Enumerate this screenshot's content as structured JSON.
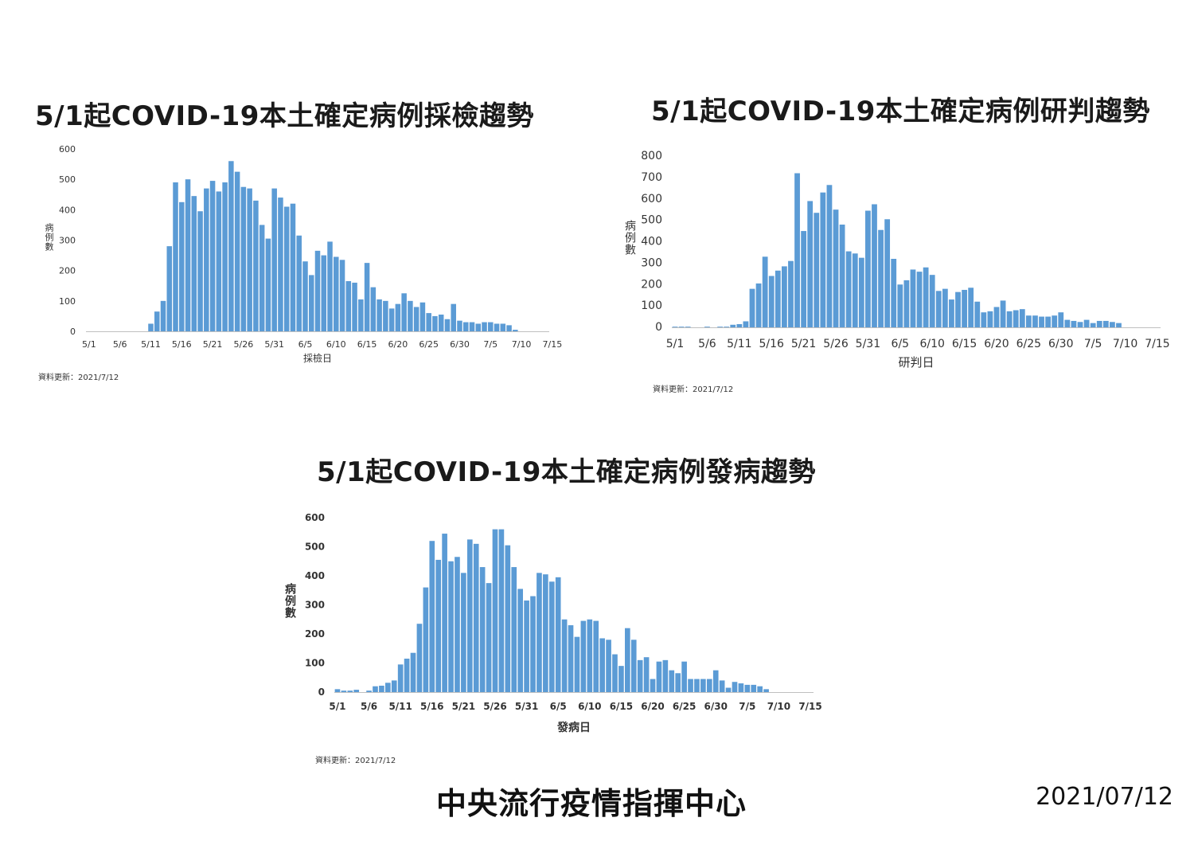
{
  "charts": [
    {
      "title": "5/1起COVID-19本土確定病例採檢趨勢",
      "xlabel": "採檢日",
      "ylabel": "病例數",
      "update": "資料更新：2021/7/12"
    },
    {
      "title": "5/1起COVID-19本土確定病例研判趨勢",
      "xlabel": "研判日",
      "ylabel": "病例數",
      "update": "資料更新：2021/7/12"
    },
    {
      "title": "5/1起COVID-19本土確定病例發病趨勢",
      "xlabel": "發病日",
      "ylabel": "病例數",
      "update": "資料更新：2021/7/12"
    }
  ],
  "footer": {
    "org": "中央流行疫情指揮中心",
    "date": "2021/07/12"
  },
  "bar_color": "#5b9bd5",
  "chart_data": [
    {
      "type": "bar",
      "title": "5/1起COVID-19本土確定病例採檢趨勢",
      "xlabel": "採檢日",
      "ylabel": "病例數",
      "xtick_labels": [
        "5/1",
        "5/6",
        "5/11",
        "5/16",
        "5/21",
        "5/26",
        "5/31",
        "6/5",
        "6/10",
        "6/15",
        "6/20",
        "6/25",
        "6/30",
        "7/5",
        "7/10",
        "7/15"
      ],
      "ylim": [
        0,
        600
      ],
      "yticks": [
        0,
        100,
        200,
        300,
        400,
        500,
        600
      ],
      "values": [
        0,
        0,
        0,
        0,
        0,
        0,
        0,
        0,
        0,
        0,
        25,
        65,
        100,
        280,
        490,
        425,
        500,
        445,
        395,
        470,
        495,
        460,
        490,
        560,
        525,
        475,
        470,
        430,
        350,
        305,
        470,
        440,
        410,
        420,
        315,
        230,
        185,
        265,
        250,
        295,
        245,
        235,
        165,
        160,
        105,
        225,
        145,
        105,
        100,
        75,
        90,
        125,
        100,
        80,
        95,
        60,
        50,
        55,
        40,
        90,
        35,
        30,
        30,
        25,
        30,
        30,
        25,
        25,
        20,
        5
      ],
      "grid": false,
      "legend": "none"
    },
    {
      "type": "bar",
      "title": "5/1起COVID-19本土確定病例研判趨勢",
      "xlabel": "研判日",
      "ylabel": "病例數",
      "xtick_labels": [
        "5/1",
        "5/6",
        "5/11",
        "5/16",
        "5/21",
        "5/26",
        "5/31",
        "6/5",
        "6/10",
        "6/15",
        "6/20",
        "6/25",
        "6/30",
        "7/5",
        "7/10",
        "7/15"
      ],
      "ylim": [
        0,
        800
      ],
      "yticks": [
        0,
        100,
        200,
        300,
        400,
        500,
        600,
        700,
        800
      ],
      "values": [
        3,
        3,
        3,
        0,
        0,
        3,
        0,
        3,
        3,
        12,
        15,
        28,
        180,
        205,
        330,
        240,
        265,
        285,
        310,
        720,
        450,
        590,
        535,
        630,
        665,
        550,
        480,
        355,
        345,
        325,
        545,
        575,
        455,
        505,
        320,
        200,
        220,
        270,
        260,
        280,
        245,
        170,
        180,
        130,
        165,
        175,
        185,
        120,
        70,
        75,
        95,
        125,
        75,
        80,
        85,
        55,
        55,
        50,
        50,
        55,
        70,
        35,
        30,
        25,
        35,
        20,
        30,
        30,
        25,
        20
      ],
      "grid": false,
      "legend": "none"
    },
    {
      "type": "bar",
      "title": "5/1起COVID-19本土確定病例發病趨勢",
      "xlabel": "發病日",
      "ylabel": "病例數",
      "xtick_labels": [
        "5/1",
        "5/6",
        "5/11",
        "5/16",
        "5/21",
        "5/26",
        "5/31",
        "6/5",
        "6/10",
        "6/15",
        "6/20",
        "6/25",
        "6/30",
        "7/5",
        "7/10",
        "7/15"
      ],
      "ylim": [
        0,
        600
      ],
      "yticks": [
        0,
        100,
        200,
        300,
        400,
        500,
        600
      ],
      "values": [
        10,
        5,
        5,
        8,
        0,
        5,
        20,
        22,
        32,
        40,
        95,
        115,
        135,
        235,
        360,
        520,
        455,
        545,
        450,
        465,
        410,
        525,
        510,
        430,
        375,
        560,
        560,
        505,
        430,
        355,
        315,
        330,
        410,
        405,
        380,
        395,
        250,
        230,
        190,
        245,
        250,
        245,
        185,
        180,
        130,
        90,
        220,
        180,
        110,
        120,
        45,
        105,
        110,
        75,
        65,
        105,
        45,
        45,
        45,
        45,
        75,
        40,
        15,
        35,
        30,
        25,
        25,
        20,
        10,
        0
      ],
      "grid": false,
      "legend": "none"
    }
  ]
}
